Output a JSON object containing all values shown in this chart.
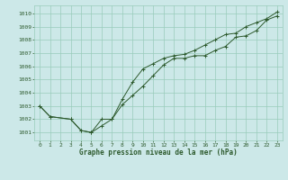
{
  "title": "Graphe pression niveau de la mer (hPa)",
  "background_color": "#cce8e8",
  "grid_color": "#99ccbb",
  "line_color": "#2d5a2d",
  "xlim": [
    -0.5,
    23.5
  ],
  "ylim": [
    1000.4,
    1010.6
  ],
  "xticks": [
    0,
    1,
    2,
    3,
    4,
    5,
    6,
    7,
    8,
    9,
    10,
    11,
    12,
    13,
    14,
    15,
    16,
    17,
    18,
    19,
    20,
    21,
    22,
    23
  ],
  "yticks": [
    1001,
    1002,
    1003,
    1004,
    1005,
    1006,
    1007,
    1008,
    1009,
    1010
  ],
  "series1_x": [
    0,
    1,
    3,
    4,
    5,
    6,
    7,
    8,
    9,
    10,
    11,
    12,
    13,
    14,
    15,
    16,
    17,
    18,
    19,
    20,
    21,
    22,
    23
  ],
  "series1_y": [
    1003.0,
    1002.2,
    1002.0,
    1001.15,
    1001.0,
    1002.0,
    1002.0,
    1003.1,
    1003.8,
    1004.5,
    1005.3,
    1006.1,
    1006.6,
    1006.6,
    1006.8,
    1006.8,
    1007.2,
    1007.5,
    1008.2,
    1008.3,
    1008.7,
    1009.5,
    1009.8
  ],
  "series2_x": [
    0,
    1,
    3,
    4,
    5,
    6,
    7,
    8,
    9,
    10,
    11,
    12,
    13,
    14,
    15,
    16,
    17,
    18,
    19,
    20,
    21,
    22,
    23
  ],
  "series2_y": [
    1003.0,
    1002.2,
    1002.0,
    1001.15,
    1001.0,
    1001.5,
    1002.0,
    1003.5,
    1004.8,
    1005.8,
    1006.2,
    1006.6,
    1006.8,
    1006.9,
    1007.2,
    1007.6,
    1008.0,
    1008.4,
    1008.5,
    1009.0,
    1009.3,
    1009.6,
    1010.1
  ],
  "xlabel_fontsize": 5.5,
  "tick_fontsize": 4.5,
  "linewidth": 0.7,
  "markersize": 2.5
}
